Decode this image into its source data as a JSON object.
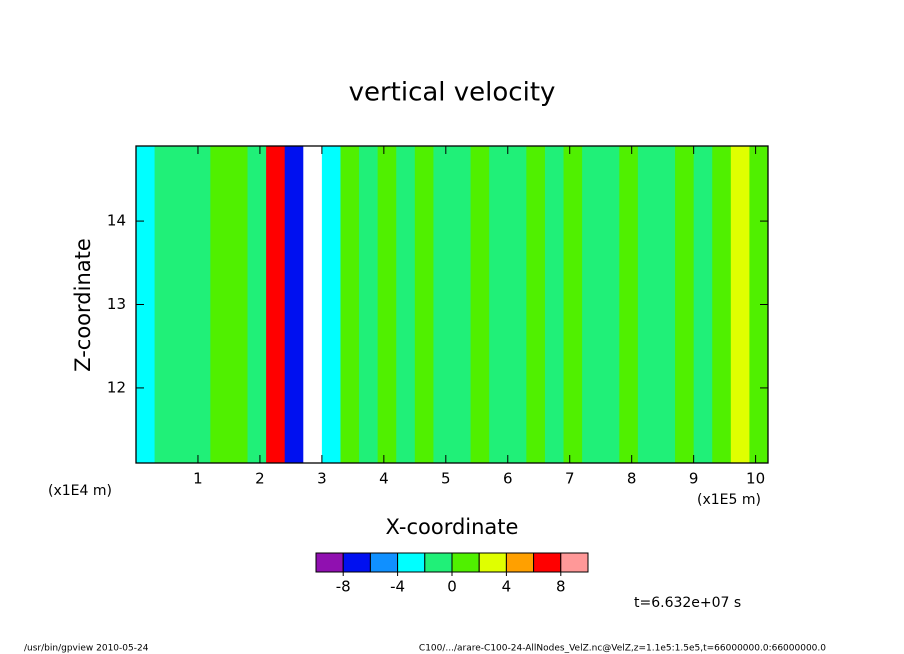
{
  "chart_data": {
    "type": "contour",
    "title": "vertical velocity",
    "x_label": "X-coordinate",
    "y_label": "Z-coordinate",
    "x_unit": "(x1E5 m)",
    "y_unit": "(x1E4 m)",
    "time_label": "t=6.632e+07 s",
    "footer_left": "/usr/bin/gpview   2010-05-24",
    "footer_right": "C100/.../arare-C100-24-AllNodes_VelZ.nc@VelZ,z=1.1e5:1.5e5,t=66000000.0:66000000.0",
    "xlim": [
      0,
      10.2
    ],
    "ylim": [
      11.1,
      14.9
    ],
    "xticks": [
      1,
      2,
      3,
      4,
      5,
      6,
      7,
      8,
      9,
      10
    ],
    "yticks": [
      12,
      13,
      14
    ],
    "x_bins": [
      0,
      0.3,
      0.6,
      0.9,
      1.2,
      1.5,
      1.8,
      2.1,
      2.4,
      2.7,
      3.0,
      3.3,
      3.6,
      3.9,
      4.2,
      4.5,
      4.8,
      5.1,
      5.4,
      5.7,
      6.0,
      6.3,
      6.6,
      6.9,
      7.2,
      7.5,
      7.8,
      8.1,
      8.4,
      8.7,
      9.0,
      9.3,
      9.6,
      9.9,
      10.2
    ],
    "values": [
      -3,
      -1,
      -1,
      -1,
      1,
      1,
      -1,
      7,
      -6,
      12,
      -3,
      1,
      -1,
      1,
      -1,
      1,
      -1,
      -1,
      1,
      -1,
      -1,
      1,
      -1,
      1,
      -1,
      -1,
      1,
      -1,
      -1,
      1,
      -1,
      1,
      3,
      1
    ],
    "colorbar": {
      "levels": [
        -10,
        -8,
        -6,
        -4,
        -2,
        0,
        2,
        4,
        6,
        8,
        10
      ],
      "colors": [
        "#9010b0",
        "#0010f0",
        "#1090ff",
        "#00ffff",
        "#20f078",
        "#50f000",
        "#e0ff00",
        "#ffa000",
        "#ff0000",
        "#ff9898"
      ],
      "above_color": "#ffffff",
      "below_color": "#ffffff",
      "ticks": [
        -8,
        -4,
        0,
        4,
        8
      ]
    }
  }
}
